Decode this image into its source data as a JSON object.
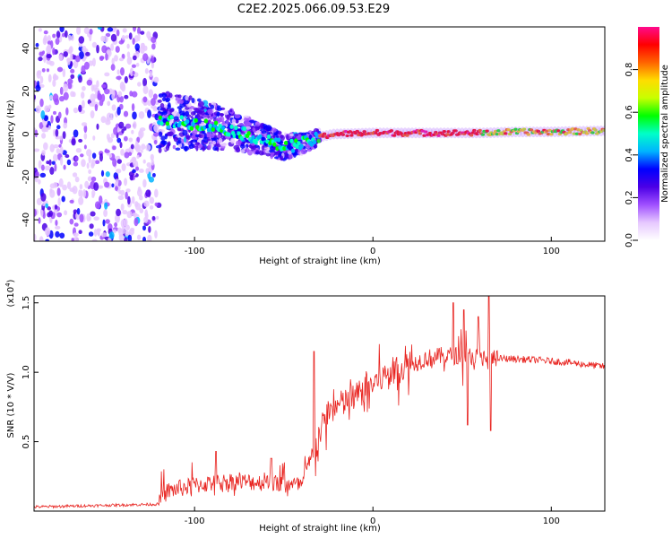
{
  "title": "C2E2.2025.066.09.53.E29",
  "colors": {
    "snr_line": "#e8231f",
    "axis": "#000000",
    "colormap": [
      "#ffffff",
      "#e6c8ff",
      "#a050ff",
      "#4b00e6",
      "#0000ff",
      "#00b4ff",
      "#00ffc8",
      "#00ff00",
      "#c8ff00",
      "#ffdc00",
      "#ff6400",
      "#ff0000",
      "#ff0a8c"
    ]
  },
  "chart_data": [
    {
      "type": "heatmap",
      "name": "spectrogram",
      "xlabel": "Height of straight line (km)",
      "ylabel": "Frequency (Hz)",
      "xlim": [
        -190,
        130
      ],
      "ylim": [
        -50,
        50
      ],
      "xticks": [
        -100,
        0,
        100
      ],
      "yticks": [
        -40,
        -20,
        0,
        20,
        40
      ],
      "xtick_labels": [
        "-100",
        "0",
        "100"
      ],
      "ytick_labels": [
        "-40",
        "-20",
        "0",
        "20",
        "40"
      ],
      "frequency_track": {
        "x": [
          -190,
          -120,
          -100,
          -80,
          -60,
          -50,
          -42,
          -38,
          -34,
          -28,
          -22,
          0,
          40,
          60,
          80,
          100,
          130
        ],
        "y": [
          8,
          6,
          5,
          2,
          -3,
          -6,
          -5,
          -4,
          -3,
          -1,
          0,
          0.5,
          0.5,
          0.5,
          1,
          1,
          1.5
        ]
      },
      "colorbar": {
        "label": "Normalized spectral amplitude",
        "range": [
          0,
          1
        ],
        "ticks": [
          0.0,
          0.2,
          0.4,
          0.6,
          0.8
        ],
        "tick_labels": [
          "0.0",
          "0.2",
          "0.4",
          "0.6",
          "0.8"
        ]
      }
    },
    {
      "type": "line",
      "name": "snr",
      "xlabel": "Height of straight line (km)",
      "ylabel": "SNR (10 * V/V)",
      "y_multiplier": "(x10",
      "y_multiplier_exp": "4",
      "y_multiplier_close": ")",
      "xlim": [
        -190,
        130
      ],
      "ylim": [
        0,
        1.55
      ],
      "xticks": [
        -100,
        0,
        100
      ],
      "yticks": [
        0.5,
        1.0,
        1.5
      ],
      "xtick_labels": [
        "-100",
        "0",
        "100"
      ],
      "ytick_labels": [
        "0.5",
        "1.0",
        "1.5"
      ],
      "envelope": {
        "x": [
          -190,
          -120,
          -115,
          -100,
          -80,
          -60,
          -40,
          -35,
          -30,
          -25,
          -10,
          0,
          10,
          20,
          30,
          40,
          50,
          60,
          65,
          70,
          90,
          110,
          130
        ],
        "y": [
          0.03,
          0.05,
          0.12,
          0.16,
          0.19,
          0.18,
          0.16,
          0.35,
          0.55,
          0.72,
          0.82,
          0.92,
          1.0,
          1.05,
          1.1,
          1.12,
          1.12,
          1.11,
          1.1,
          1.1,
          1.09,
          1.07,
          1.04
        ]
      },
      "spikes": [
        {
          "x": -33,
          "y": 1.15
        },
        {
          "x": 45,
          "y": 1.5
        },
        {
          "x": 51,
          "y": 1.45
        },
        {
          "x": 53,
          "y": 0.62
        },
        {
          "x": 59,
          "y": 1.4
        },
        {
          "x": 65,
          "y": 1.57
        },
        {
          "x": 66,
          "y": 0.58
        },
        {
          "x": -88,
          "y": 0.43
        },
        {
          "x": -57,
          "y": 0.38
        }
      ]
    }
  ]
}
